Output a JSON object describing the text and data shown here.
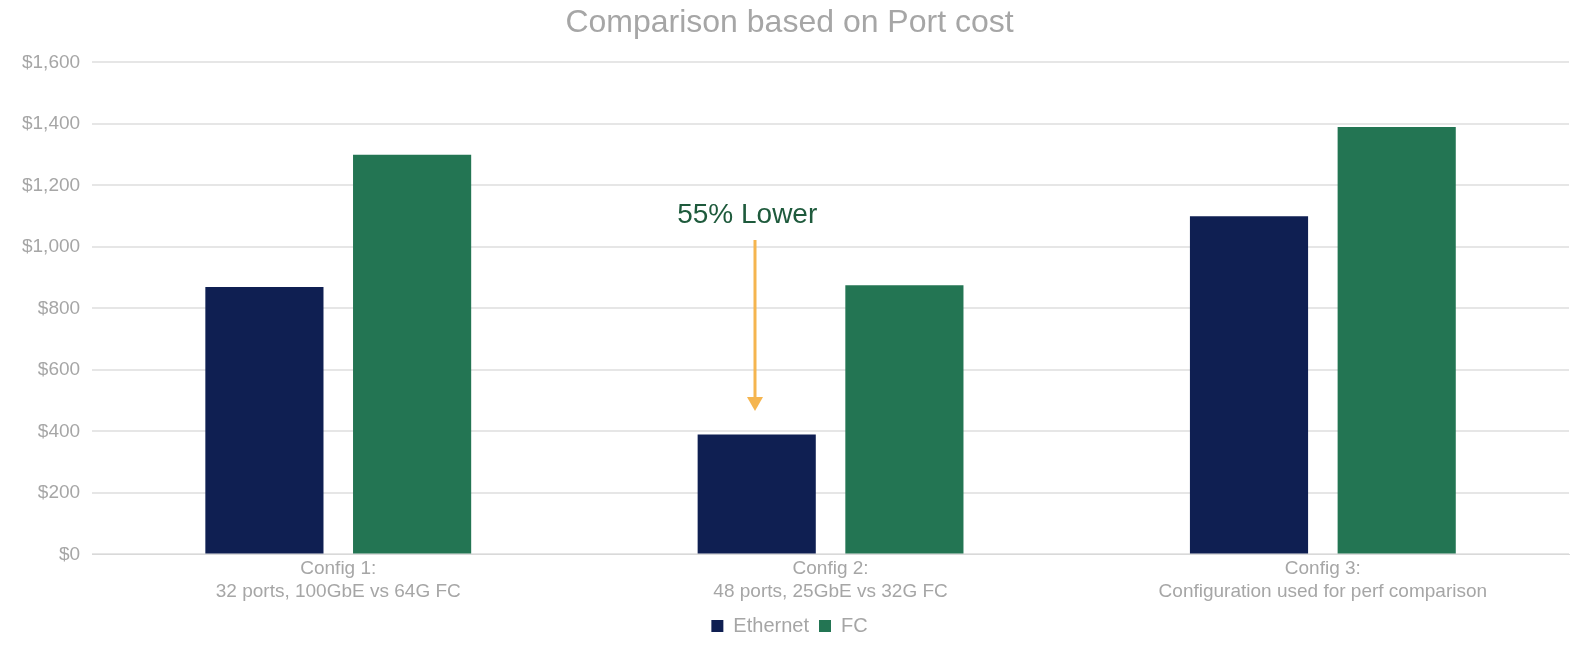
{
  "chart_data": {
    "type": "bar",
    "title": "Comparison based on Port cost",
    "categories": [
      "Config 1:\n32 ports, 100GbE vs 64G FC",
      "Config 2:\n48 ports, 25GbE vs 32G FC",
      "Config 3:\nConfiguration used for perf comparison"
    ],
    "series": [
      {
        "name": "Ethernet",
        "color": "#0f1f52",
        "values": [
          870,
          390,
          1100
        ]
      },
      {
        "name": "FC",
        "color": "#237553",
        "values": [
          1300,
          875,
          1390
        ]
      }
    ],
    "ylim": [
      0,
      1600
    ],
    "yticks": [
      {
        "value": 0,
        "label": "$0"
      },
      {
        "value": 200,
        "label": "$200"
      },
      {
        "value": 400,
        "label": "$400"
      },
      {
        "value": 600,
        "label": "$600"
      },
      {
        "value": 800,
        "label": "$800"
      },
      {
        "value": 1000,
        "label": "$1,000"
      },
      {
        "value": 1200,
        "label": "$1,200"
      },
      {
        "value": 1400,
        "label": "$1,400"
      },
      {
        "value": 1600,
        "label": "$1,600"
      }
    ],
    "grid": "y",
    "legend": "bottom",
    "annotations": [
      "55% Lower"
    ]
  }
}
